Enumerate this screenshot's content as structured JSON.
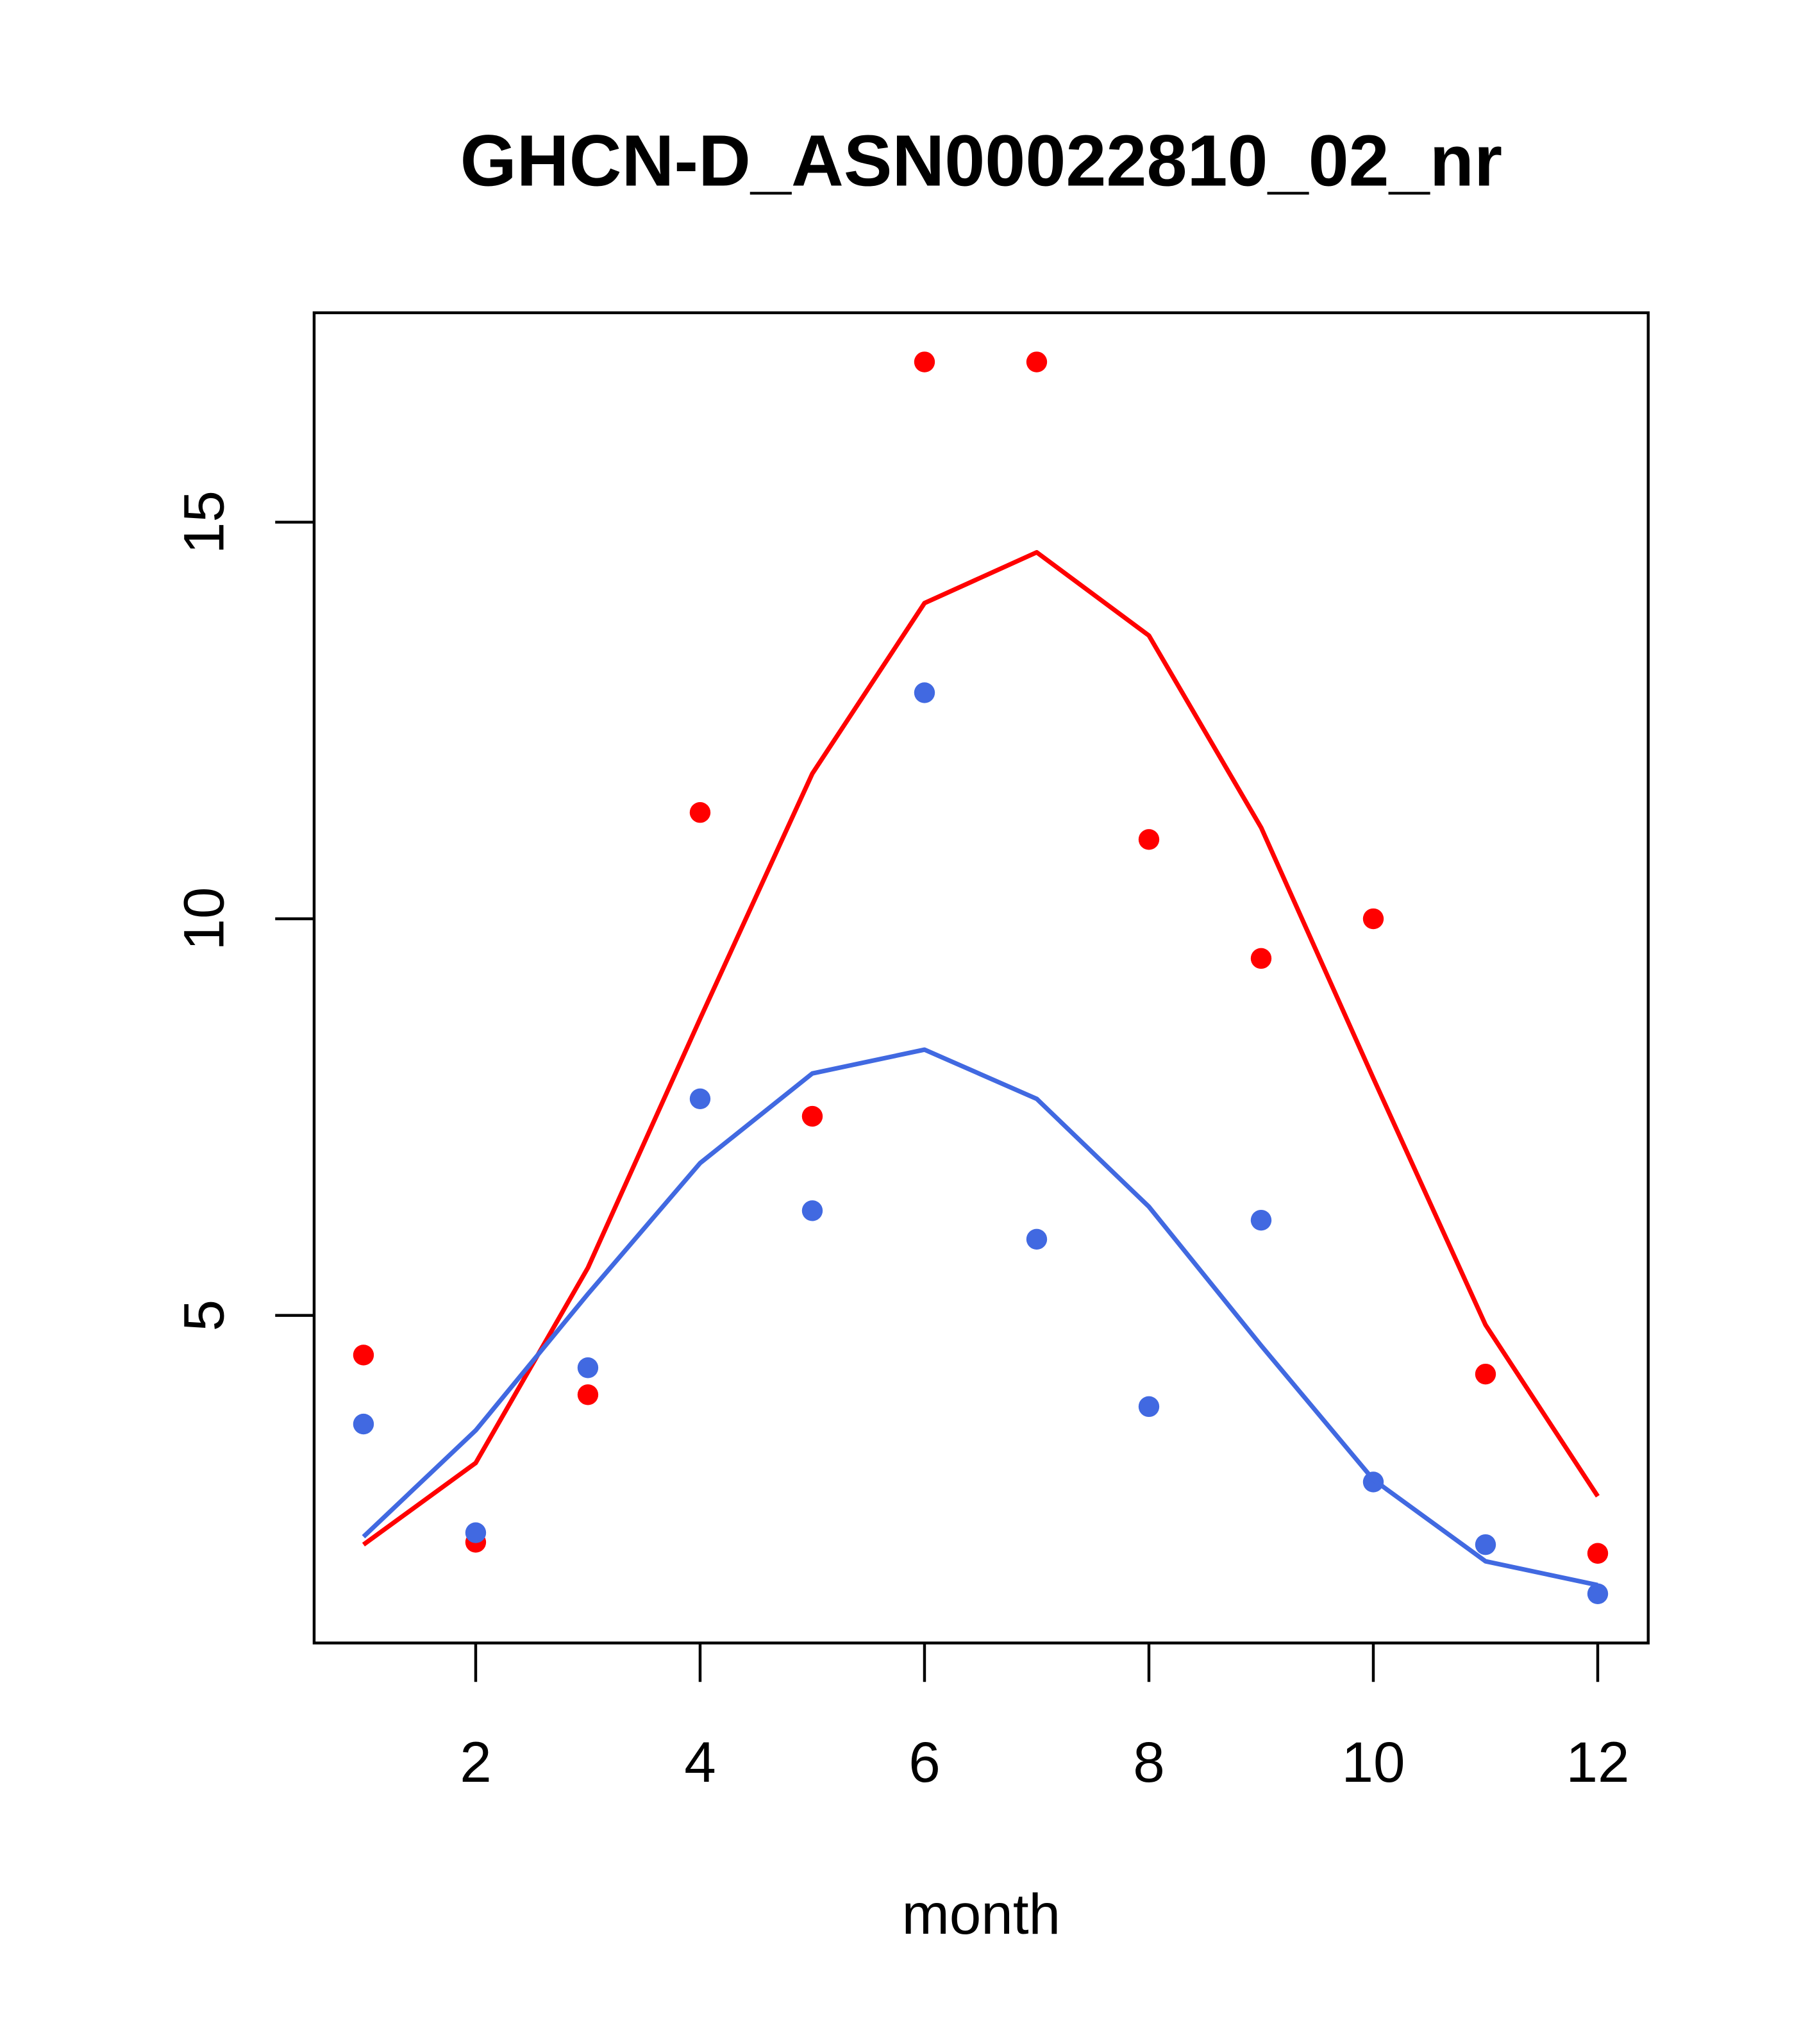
{
  "chart_data": {
    "type": "line",
    "title": "GHCN-D_ASN00022810_02_nr",
    "xlabel": "month",
    "ylabel": "",
    "xlim": [
      0.56,
      12.45
    ],
    "ylim": [
      0.87,
      17.64
    ],
    "x_ticks": [
      2,
      4,
      6,
      8,
      10,
      12
    ],
    "x_tick_labels": [
      "2",
      "4",
      "6",
      "8",
      "10",
      "12"
    ],
    "y_ticks": [
      5,
      10,
      15
    ],
    "y_tick_labels": [
      "5",
      "10",
      "15"
    ],
    "grid": false,
    "legend": null,
    "x": [
      1,
      2,
      3,
      4,
      5,
      6,
      7,
      8,
      9,
      10,
      11,
      12
    ],
    "series": [
      {
        "name": "red points",
        "kind": "scatter",
        "color": "#ff0000",
        "values": [
          4.5,
          2.14,
          4.0,
          11.34,
          7.51,
          17.02,
          17.02,
          11.0,
          9.5,
          10.0,
          4.26,
          2.0
        ]
      },
      {
        "name": "red line",
        "kind": "line",
        "color": "#ff0000",
        "values": [
          2.11,
          3.14,
          5.6,
          8.74,
          11.83,
          13.98,
          14.62,
          13.57,
          11.15,
          7.99,
          4.88,
          2.72
        ]
      },
      {
        "name": "blue points",
        "kind": "scatter",
        "color": "#4169e1",
        "values": [
          3.63,
          2.26,
          4.34,
          7.73,
          6.32,
          12.85,
          5.96,
          3.85,
          6.2,
          2.9,
          2.11,
          1.49
        ]
      },
      {
        "name": "blue line",
        "kind": "line",
        "color": "#4169e1",
        "values": [
          2.21,
          3.55,
          5.27,
          6.92,
          8.05,
          8.35,
          7.73,
          6.37,
          4.62,
          2.93,
          1.9,
          1.6
        ]
      }
    ]
  }
}
